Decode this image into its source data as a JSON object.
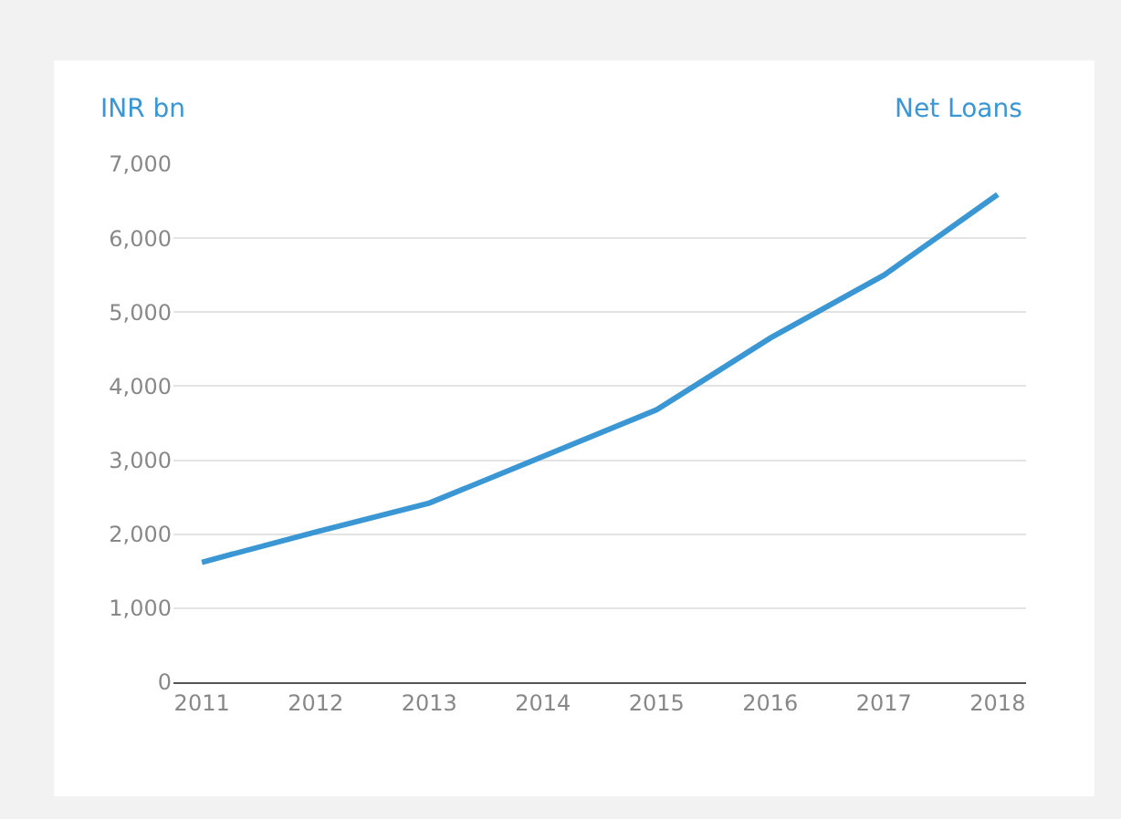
{
  "chart_data": {
    "type": "line",
    "title": "Net Loans",
    "ylabel": "INR bn",
    "categories": [
      "2011",
      "2012",
      "2013",
      "2014",
      "2015",
      "2016",
      "2017",
      "2018"
    ],
    "series": [
      {
        "color": "#3a97d4",
        "values": [
          1620,
          2030,
          2420,
          3050,
          3680,
          4650,
          5500,
          6590
        ]
      }
    ],
    "ylim": [
      0,
      7000
    ],
    "yticks": [
      {
        "value": 0,
        "label": "0"
      },
      {
        "value": 1000,
        "label": "1,000"
      },
      {
        "value": 2000,
        "label": "2,000"
      },
      {
        "value": 3000,
        "label": "3,000"
      },
      {
        "value": 4000,
        "label": "4,000"
      },
      {
        "value": 5000,
        "label": "5,000"
      },
      {
        "value": 6000,
        "label": "6,000"
      },
      {
        "value": 7000,
        "label": "7,000"
      }
    ],
    "grid": "y",
    "marker": "none",
    "line_style": "solid"
  }
}
